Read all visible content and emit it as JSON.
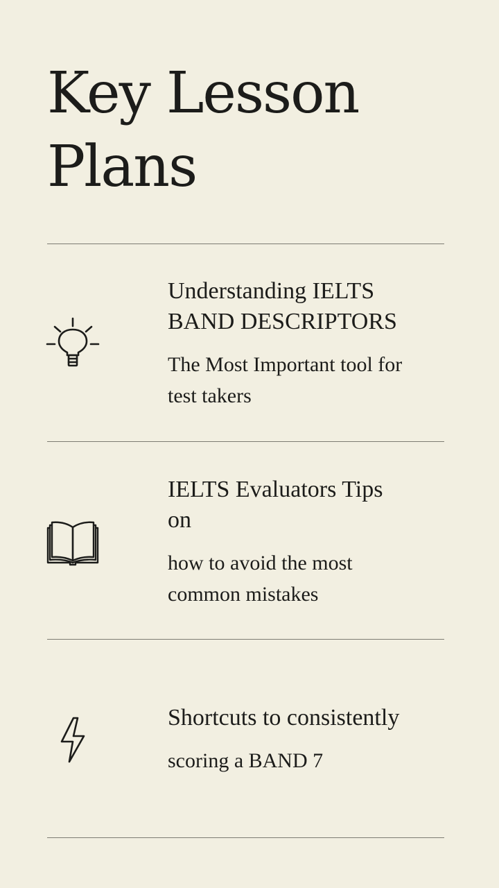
{
  "title": {
    "line1": "Key Lesson",
    "line2": "Plans"
  },
  "items": [
    {
      "icon": "lightbulb-icon",
      "heading_line1": "Understanding IELTS",
      "heading_line2": "BAND DESCRIPTORS",
      "desc_line1": "The Most Important tool for",
      "desc_line2": "test takers"
    },
    {
      "icon": "open-book-icon",
      "heading_line1": "IELTS Evaluators Tips",
      "heading_line2": "on",
      "desc_line1": "how to avoid the most",
      "desc_line2": "common mistakes"
    },
    {
      "icon": "lightning-bolt-icon",
      "heading_line1": "Shortcuts to consistently",
      "desc_line1": "scoring a BAND 7"
    }
  ],
  "colors": {
    "background": "#f2efe1",
    "text": "#1c1c1a",
    "divider": "#7d7b72"
  }
}
